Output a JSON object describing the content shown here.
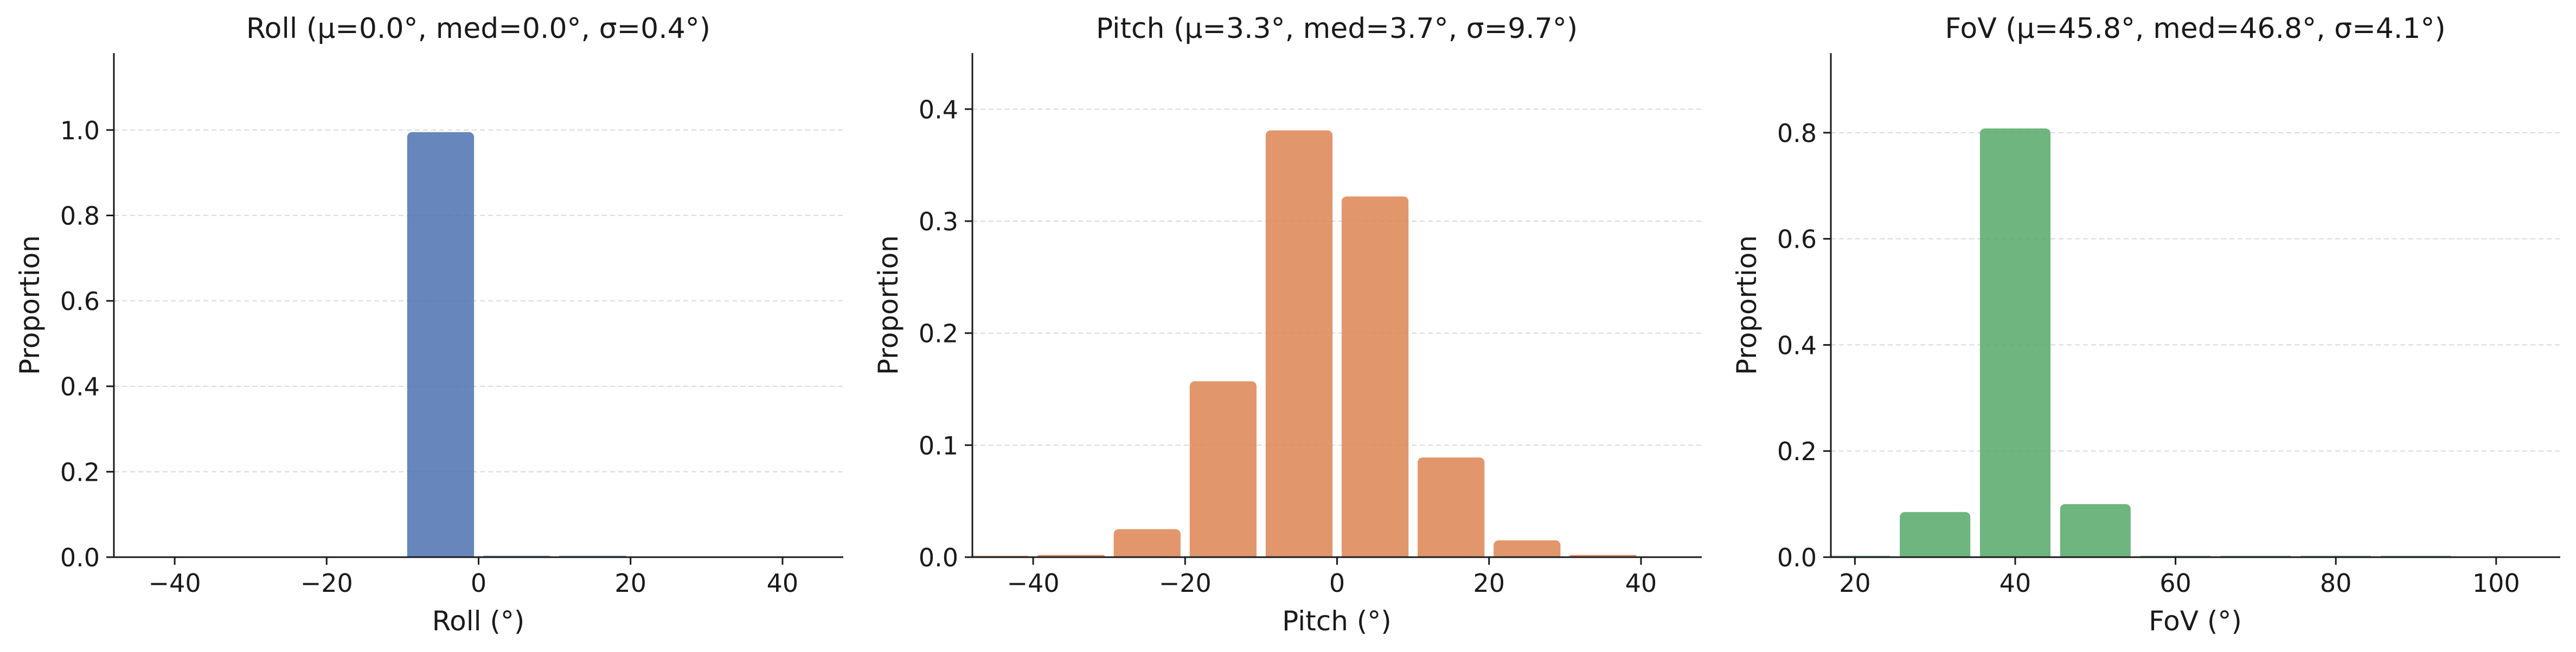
{
  "chart_data": [
    {
      "type": "bar",
      "title": "Roll  (μ=0.0°, med=0.0°, σ=0.4°)",
      "xlabel": "Roll (°)",
      "ylabel": "Proportion",
      "xlim": [
        -48,
        48
      ],
      "ylim": [
        0,
        1.18
      ],
      "xticks": [
        -40,
        -20,
        0,
        20,
        40
      ],
      "xtick_labels": [
        "−40",
        "−20",
        "0",
        "20",
        "40"
      ],
      "yticks": [
        0.0,
        0.2,
        0.4,
        0.6,
        0.8,
        1.0
      ],
      "ytick_labels": [
        "0.0",
        "0.2",
        "0.4",
        "0.6",
        "0.8",
        "1.0"
      ],
      "bin_width": 10,
      "bars": [
        {
          "x": -5,
          "value": 0.995
        },
        {
          "x": 5,
          "value": 0.002
        },
        {
          "x": 15,
          "value": 0.002
        }
      ],
      "grid": true,
      "color": "#4c72b0"
    },
    {
      "type": "bar",
      "title": "Pitch  (μ=3.3°, med=3.7°, σ=9.7°)",
      "xlabel": "Pitch (°)",
      "ylabel": "Proportion",
      "xlim": [
        -48,
        48
      ],
      "ylim": [
        0,
        0.45
      ],
      "xticks": [
        -40,
        -20,
        0,
        20,
        40
      ],
      "xtick_labels": [
        "−40",
        "−20",
        "0",
        "20",
        "40"
      ],
      "yticks": [
        0.0,
        0.1,
        0.2,
        0.3,
        0.4
      ],
      "ytick_labels": [
        "0.0",
        "0.1",
        "0.2",
        "0.3",
        "0.4"
      ],
      "bin_width": 10,
      "bars": [
        {
          "x": -45,
          "value": 0.001
        },
        {
          "x": -35,
          "value": 0.002
        },
        {
          "x": -25,
          "value": 0.025
        },
        {
          "x": -15,
          "value": 0.157
        },
        {
          "x": -5,
          "value": 0.381
        },
        {
          "x": 5,
          "value": 0.322
        },
        {
          "x": 15,
          "value": 0.089
        },
        {
          "x": 25,
          "value": 0.015
        },
        {
          "x": 35,
          "value": 0.002
        }
      ],
      "grid": true,
      "color": "#dd8452"
    },
    {
      "type": "bar",
      "title": "FoV  (μ=45.8°, med=46.8°, σ=4.1°)",
      "xlabel": "FoV (°)",
      "ylabel": "Proportion",
      "xlim": [
        17,
        108
      ],
      "ylim": [
        0,
        0.95
      ],
      "xticks": [
        20,
        40,
        60,
        80,
        100
      ],
      "xtick_labels": [
        "20",
        "40",
        "60",
        "80",
        "100"
      ],
      "yticks": [
        0.0,
        0.2,
        0.4,
        0.6,
        0.8
      ],
      "ytick_labels": [
        "0.0",
        "0.2",
        "0.4",
        "0.6",
        "0.8"
      ],
      "bin_width": 10,
      "bars": [
        {
          "x": 20,
          "value": 0.001
        },
        {
          "x": 30,
          "value": 0.085
        },
        {
          "x": 40,
          "value": 0.808
        },
        {
          "x": 50,
          "value": 0.1
        },
        {
          "x": 60,
          "value": 0.001
        },
        {
          "x": 70,
          "value": 0.001
        },
        {
          "x": 80,
          "value": 0.001
        },
        {
          "x": 90,
          "value": 0.001
        }
      ],
      "grid": true,
      "color": "#55a868"
    }
  ]
}
